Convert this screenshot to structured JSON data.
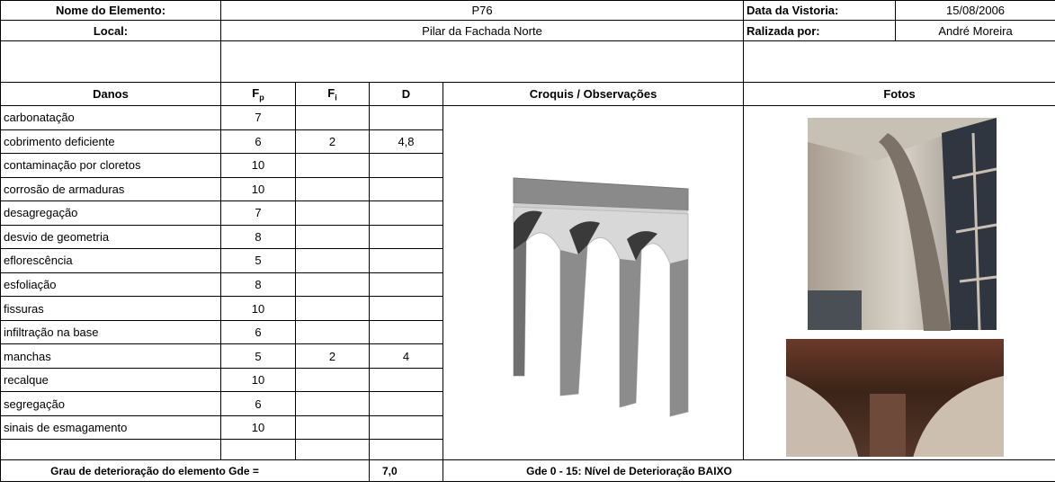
{
  "header": {
    "element_label": "Nome do Elemento:",
    "element": "P76",
    "date_label": "Data da Vistoria:",
    "date": "15/08/2006",
    "local_label": "Local:",
    "local": "Pilar da Fachada Norte",
    "by_label": "Ralizada por:",
    "by": "André Moreira"
  },
  "table": {
    "columns": [
      {
        "text": "Danos"
      },
      {
        "text": "F",
        "sub": "p"
      },
      {
        "text": "F",
        "sub": "i"
      },
      {
        "text": "D"
      },
      {
        "text": "Croquis / Observações"
      },
      {
        "text": "Fotos"
      }
    ],
    "rows": [
      {
        "name": "carbonatação",
        "fp": 7
      },
      {
        "name": "cobrimento deficiente",
        "fp": 6,
        "fi": 2,
        "d": "4,8"
      },
      {
        "name": "contaminação por cloretos",
        "fp": 10
      },
      {
        "name": "corrosão de armaduras",
        "fp": 10
      },
      {
        "name": "desagregação",
        "fp": 7
      },
      {
        "name": "desvio de geometria",
        "fp": 8
      },
      {
        "name": "eflorescência",
        "fp": 5
      },
      {
        "name": "esfoliação",
        "fp": 8
      },
      {
        "name": "fissuras",
        "fp": 10
      },
      {
        "name": "infiltração na base",
        "fp": 6
      },
      {
        "name": "manchas",
        "fp": 5,
        "fi": 2,
        "d": 4
      },
      {
        "name": "recalque",
        "fp": 10
      },
      {
        "name": "segregação",
        "fp": 6
      },
      {
        "name": "sinais de esmagamento",
        "fp": 10
      }
    ]
  },
  "footer": {
    "label": "Grau de deterioração do elemento Gde  =",
    "value": "7,0",
    "note": "Gde 0 - 15:  Nível de Deterioração BAIXO"
  }
}
